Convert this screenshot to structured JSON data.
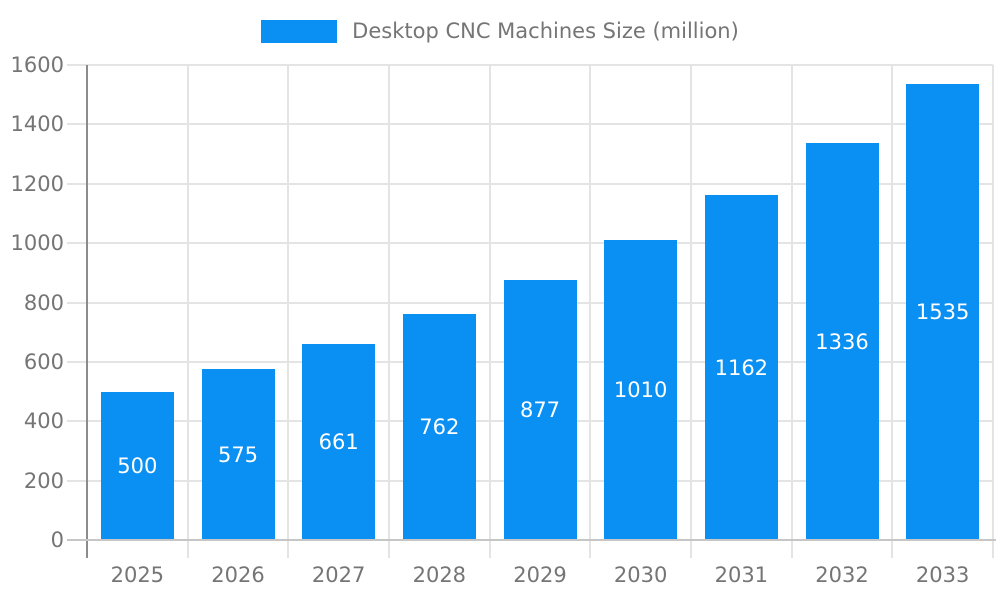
{
  "legend": {
    "label": "Desktop CNC Machines Size (million)",
    "swatch_color": "#0a8ff2",
    "position": "top-center"
  },
  "chart_data": {
    "type": "bar",
    "title": "Desktop CNC Machines Size (million)",
    "categories": [
      "2025",
      "2026",
      "2027",
      "2028",
      "2029",
      "2030",
      "2031",
      "2032",
      "2033"
    ],
    "series": [
      {
        "name": "Desktop CNC Machines Size (million)",
        "values": [
          500,
          575,
          661,
          762,
          877,
          1010,
          1162,
          1336,
          1535
        ]
      }
    ],
    "data_labels_visible": true,
    "xlabel": "",
    "ylabel": "",
    "ylim": [
      0,
      1600
    ],
    "ytick_step": 200,
    "yticks": [
      0,
      200,
      400,
      600,
      800,
      1000,
      1200,
      1400,
      1600
    ],
    "grid": true,
    "legend_position": "top",
    "colors": {
      "bar": "#0a8ff2",
      "bar_label_text": "#ffffff",
      "axis_text": "#757575",
      "gridline": "#e4e4e4",
      "y_axis_line": "#8c8c8c",
      "baseline": "#c6c6c6",
      "background": "#ffffff"
    }
  }
}
